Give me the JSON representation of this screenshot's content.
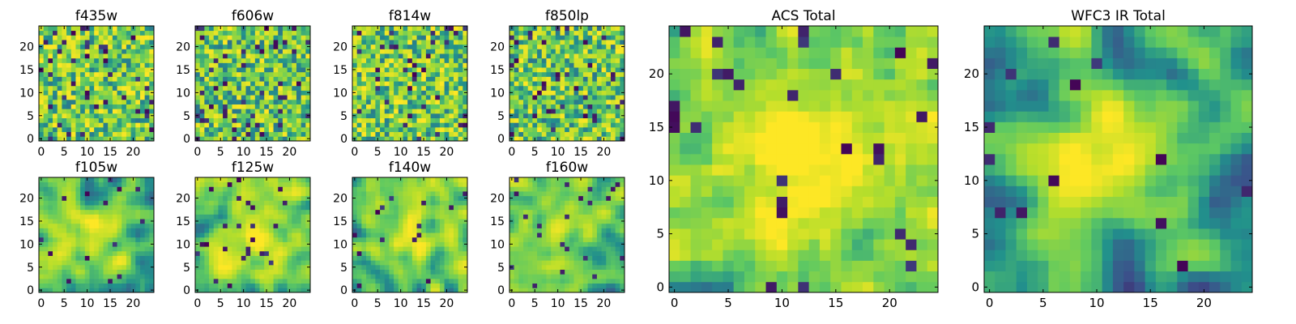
{
  "figure": {
    "description_free": true
  },
  "chart_data": [
    {
      "type": "heatmap",
      "title": "f435w",
      "grid_size": 25,
      "xticks": [
        "0",
        "5",
        "10",
        "15",
        "20"
      ],
      "yticks": [
        "0",
        "5",
        "10",
        "15",
        "20"
      ],
      "xlim": [
        0,
        25
      ],
      "ylim": [
        0,
        25
      ],
      "seed": 11,
      "smoothness": 0,
      "blob": 0,
      "dark_frac": 0.07,
      "bias": 0.62
    },
    {
      "type": "heatmap",
      "title": "f606w",
      "grid_size": 25,
      "xticks": [
        "0",
        "5",
        "10",
        "15",
        "20"
      ],
      "yticks": [
        "0",
        "5",
        "10",
        "15",
        "20"
      ],
      "xlim": [
        0,
        25
      ],
      "ylim": [
        0,
        25
      ],
      "seed": 23,
      "smoothness": 0,
      "blob": 0,
      "dark_frac": 0.06,
      "bias": 0.6
    },
    {
      "type": "heatmap",
      "title": "f814w",
      "grid_size": 25,
      "xticks": [
        "0",
        "5",
        "10",
        "15",
        "20"
      ],
      "yticks": [
        "0",
        "5",
        "10",
        "15",
        "20"
      ],
      "xlim": [
        0,
        25
      ],
      "ylim": [
        0,
        25
      ],
      "seed": 37,
      "smoothness": 0,
      "blob": 0,
      "dark_frac": 0.06,
      "bias": 0.62
    },
    {
      "type": "heatmap",
      "title": "f850lp",
      "grid_size": 25,
      "xticks": [
        "0",
        "5",
        "10",
        "15",
        "20"
      ],
      "yticks": [
        "0",
        "5",
        "10",
        "15",
        "20"
      ],
      "xlim": [
        0,
        25
      ],
      "ylim": [
        0,
        25
      ],
      "seed": 41,
      "smoothness": 0,
      "blob": 0,
      "dark_frac": 0.07,
      "bias": 0.6
    },
    {
      "type": "heatmap",
      "title": "f105w",
      "grid_size": 25,
      "xticks": [
        "0",
        "5",
        "10",
        "15",
        "20"
      ],
      "yticks": [
        "0",
        "5",
        "10",
        "15",
        "20"
      ],
      "xlim": [
        0,
        25
      ],
      "ylim": [
        0,
        25
      ],
      "seed": 53,
      "smoothness": 2,
      "blob": 0.25,
      "dark_frac": 0.03,
      "bias": 0.55
    },
    {
      "type": "heatmap",
      "title": "f125w",
      "grid_size": 25,
      "xticks": [
        "0",
        "5",
        "10",
        "15",
        "20"
      ],
      "yticks": [
        "0",
        "5",
        "10",
        "15",
        "20"
      ],
      "xlim": [
        0,
        25
      ],
      "ylim": [
        0,
        25
      ],
      "seed": 67,
      "smoothness": 2,
      "blob": 0.25,
      "dark_frac": 0.03,
      "bias": 0.6
    },
    {
      "type": "heatmap",
      "title": "f140w",
      "grid_size": 25,
      "xticks": [
        "0",
        "5",
        "10",
        "15",
        "20"
      ],
      "yticks": [
        "0",
        "5",
        "10",
        "15",
        "20"
      ],
      "xlim": [
        0,
        25
      ],
      "ylim": [
        0,
        25
      ],
      "seed": 79,
      "smoothness": 2,
      "blob": 0.35,
      "dark_frac": 0.03,
      "bias": 0.55
    },
    {
      "type": "heatmap",
      "title": "f160w",
      "grid_size": 25,
      "xticks": [
        "0",
        "5",
        "10",
        "15",
        "20"
      ],
      "yticks": [
        "0",
        "5",
        "10",
        "15",
        "20"
      ],
      "xlim": [
        0,
        25
      ],
      "ylim": [
        0,
        25
      ],
      "seed": 83,
      "smoothness": 2,
      "blob": 0.3,
      "dark_frac": 0.04,
      "bias": 0.55
    },
    {
      "type": "heatmap",
      "title": "ACS Total",
      "grid_size": 25,
      "xticks": [
        "0",
        "5",
        "10",
        "15",
        "20"
      ],
      "yticks": [
        "0",
        "5",
        "10",
        "15",
        "20"
      ],
      "xlim": [
        0,
        25
      ],
      "ylim": [
        0,
        25
      ],
      "seed": 97,
      "smoothness": 1,
      "blob": 0.35,
      "dark_frac": 0.05,
      "bias": 0.6
    },
    {
      "type": "heatmap",
      "title": "WFC3 IR Total",
      "grid_size": 25,
      "xticks": [
        "0",
        "5",
        "10",
        "15",
        "20"
      ],
      "yticks": [
        "0",
        "5",
        "10",
        "15",
        "20"
      ],
      "xlim": [
        0,
        25
      ],
      "ylim": [
        0,
        25
      ],
      "seed": 101,
      "smoothness": 2,
      "blob": 0.6,
      "dark_frac": 0.02,
      "bias": 0.45
    }
  ],
  "colormap": {
    "name": "viridis",
    "stops": [
      "#440154",
      "#3b528b",
      "#21918c",
      "#5ec962",
      "#b5de2b",
      "#fde725"
    ]
  }
}
